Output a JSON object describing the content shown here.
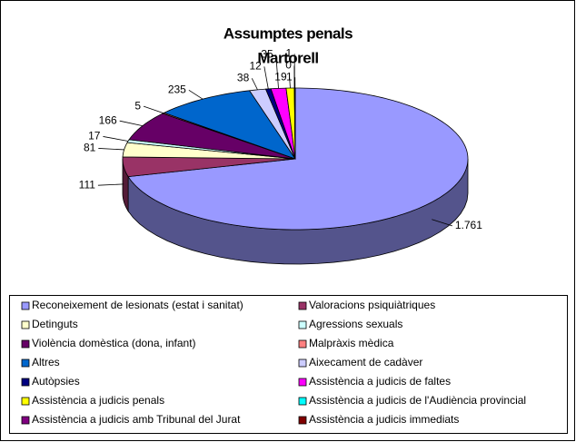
{
  "chart_data": {
    "type": "pie3d",
    "title": "Assumptes penals",
    "subtitle": "Martorell",
    "categories": [
      "Reconeixement de lesionats (estat i sanitat)",
      "Valoracions psiquiàtriques",
      "Detinguts",
      "Agressions sexuals",
      "Violència domèstica (dona, infant)",
      "Malpràxis mèdica",
      "Altres",
      "Aixecament de cadàver",
      "Autòpsies",
      "Assistència a judicis de faltes",
      "Assistència a judicis penals",
      "Assistència a judicis de l'Audiència provincial",
      "Assistència a judicis amb Tribunal del Jurat",
      "Assistència a judicis immediats"
    ],
    "values": [
      1761,
      111,
      81,
      17,
      166,
      5,
      235,
      38,
      12,
      35,
      19,
      0,
      1,
      1
    ],
    "value_labels": [
      "1.761",
      "111",
      "81",
      "17",
      "166",
      "5",
      "235",
      "38",
      "12",
      "35",
      "19",
      "0",
      "1",
      "1"
    ],
    "colors": [
      "#9999FF",
      "#993366",
      "#FFFFCC",
      "#CCFFFF",
      "#660066",
      "#FF8080",
      "#0066CC",
      "#CCCCFF",
      "#000080",
      "#FF00FF",
      "#FFFF00",
      "#00FFFF",
      "#800080",
      "#800000"
    ],
    "legend": "bottom"
  }
}
